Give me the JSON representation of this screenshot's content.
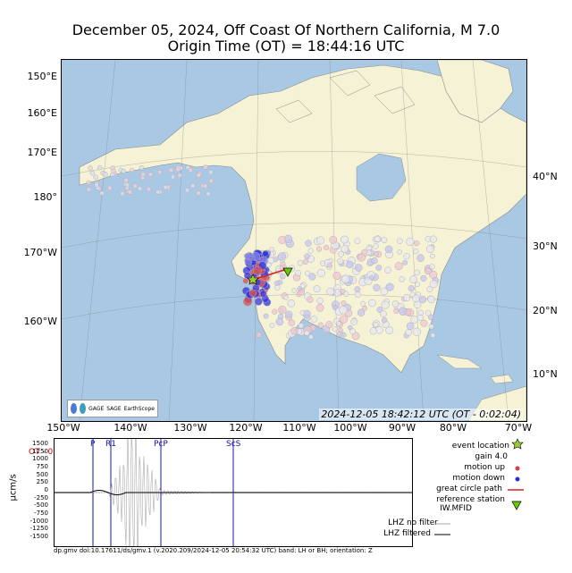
{
  "title": {
    "line1": "December 05, 2024, Off Coast Of Northern California, M 7.0",
    "line2": "Origin Time (OT) = 18:44:16 UTC"
  },
  "map": {
    "left_labels": [
      "150°E",
      "160°E",
      "170°E",
      "180°",
      "170°W",
      "160°W"
    ],
    "right_labels": [
      "40°N",
      "30°N",
      "20°N",
      "10°N"
    ],
    "bottom_labels": [
      "150°W",
      "140°W",
      "130°W",
      "120°W",
      "110°W",
      "100°W",
      "90°W",
      "80°W",
      "70°W"
    ],
    "timestamp": "2024-12-05 18:42:12 UTC (OT - 0:02:04)",
    "logos": [
      "GAGE",
      "SAGE",
      "EarthScope"
    ],
    "colors": {
      "ocean": "#a9c8e4",
      "land": "#f6f2d6",
      "motion_up": "#e03a3a",
      "motion_down": "#2a2ae0",
      "event_star": "#9acd32",
      "station": "#66cc00"
    }
  },
  "seismogram": {
    "ot_marker": "OT - 0:02:04",
    "y_label": "µcm/s",
    "y_ticks": [
      "1500",
      "1250",
      "1000",
      "750",
      "500",
      "250",
      "0",
      "-250",
      "-500",
      "-750",
      "-1000",
      "-1250",
      "-1500"
    ],
    "phases": [
      "P",
      "R1",
      "PcP",
      "ScS"
    ],
    "footer": "dp.gmv doi:10.17611/ds/gmv.1 (v.2020.209/2024-12-05 20:54:32 UTC) band: LH or BH; orientation: Z"
  },
  "legend": {
    "event_location": "event location",
    "gain": "gain  4.0",
    "motion_up": "motion up",
    "motion_down": "motion down",
    "great_circle": "great circle path",
    "reference_station": "reference station",
    "station_code": "IW.MFID",
    "no_filter": "LHZ no filter",
    "filtered": "LHZ filtered"
  }
}
